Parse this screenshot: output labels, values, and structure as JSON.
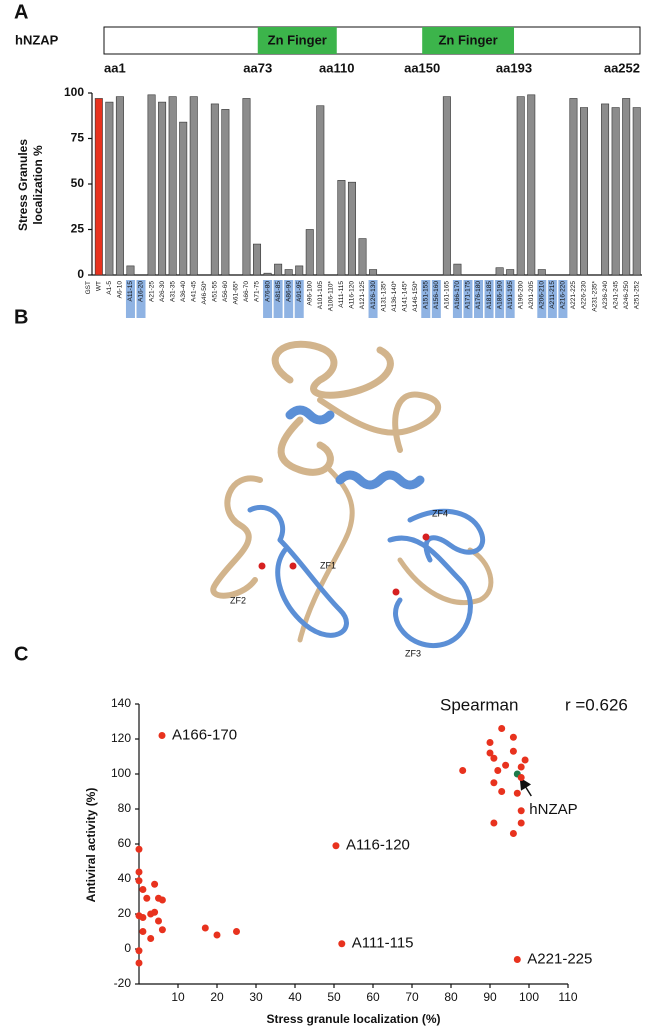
{
  "panels": [
    "A",
    "B",
    "C"
  ],
  "domain_map": {
    "label": "hNZAP",
    "start": 1,
    "end": 252,
    "domains": [
      {
        "label": "Zn Finger",
        "start": 73,
        "end": 110,
        "color": "#3cb44b"
      },
      {
        "label": "Zn Finger",
        "start": 150,
        "end": 193,
        "color": "#3cb44b"
      }
    ],
    "ticks": [
      {
        "value": 1,
        "label": "aa1"
      },
      {
        "value": 73,
        "label": "aa73"
      },
      {
        "value": 110,
        "label": "aa110"
      },
      {
        "value": 150,
        "label": "aa150"
      },
      {
        "value": 193,
        "label": "aa193"
      },
      {
        "value": 252,
        "label": "aa252"
      }
    ]
  },
  "structure": {
    "labels": [
      "ZF1",
      "ZF2",
      "ZF3",
      "ZF4"
    ]
  },
  "chart_data": [
    {
      "type": "bar",
      "ylabel": [
        "Stress Granules",
        "localization %"
      ],
      "categories": [
        "GST",
        "WT",
        "A1-5",
        "A6-10",
        "A11-15",
        "A16-20",
        "A21-25",
        "A26-30",
        "A31-35",
        "A36-40",
        "A41-45",
        "A46-50*",
        "A51-55",
        "A56-60",
        "A61-65*",
        "A66-70",
        "A71-75",
        "A76-80",
        "A81-85",
        "A86-90",
        "A91-95",
        "A96-100",
        "A101-105",
        "A106-110*",
        "A111-115",
        "A116-120",
        "A121-125",
        "A126-130",
        "A131-135*",
        "A136-140*",
        "A141-145*",
        "A146-150*",
        "A151-155",
        "A156-160",
        "A161-165",
        "A166-170",
        "A171-175",
        "A176-180",
        "A181-185",
        "A186-190",
        "A191-195",
        "A196-200",
        "A201-205",
        "A206-210",
        "A211-215",
        "A216-220",
        "A221-225",
        "A226-230",
        "A231-235*",
        "A236-240",
        "A241-245",
        "A246-250",
        "A251-252"
      ],
      "values": [
        0,
        97,
        95,
        98,
        5,
        0,
        99,
        95,
        98,
        84,
        98,
        0,
        94,
        91,
        0,
        97,
        17,
        1,
        6,
        3,
        5,
        25,
        93,
        0,
        52,
        51,
        20,
        3,
        0,
        0,
        0,
        0,
        0,
        0,
        98,
        6,
        0,
        0,
        0,
        4,
        3,
        98,
        99,
        3,
        0,
        0,
        97,
        92,
        0,
        94,
        92,
        97,
        92
      ],
      "color": "#8c8c8c",
      "special_color": "#e8321e",
      "special": [
        false,
        true,
        false,
        false,
        false,
        false,
        false,
        false,
        false,
        false,
        false,
        false,
        false,
        false,
        false,
        false,
        false,
        false,
        false,
        false,
        false,
        false,
        false,
        false,
        false,
        false,
        false,
        false,
        false,
        false,
        false,
        false,
        false,
        false,
        false,
        false,
        false,
        false,
        false,
        false,
        false,
        false,
        false,
        false,
        false,
        false,
        false,
        false,
        false,
        false,
        false,
        false,
        false
      ],
      "highlight_color": "#8fb3e3",
      "highlighted": [
        false,
        false,
        false,
        false,
        true,
        true,
        false,
        false,
        false,
        false,
        false,
        false,
        false,
        false,
        false,
        false,
        false,
        true,
        true,
        true,
        true,
        false,
        false,
        false,
        false,
        false,
        false,
        true,
        false,
        false,
        false,
        false,
        true,
        true,
        false,
        true,
        true,
        true,
        true,
        true,
        true,
        false,
        false,
        true,
        true,
        true,
        false,
        false,
        false,
        false,
        false,
        false,
        false
      ],
      "ylim": [
        0,
        100
      ],
      "yticks": [
        0,
        25,
        50,
        75,
        100
      ]
    },
    {
      "type": "scatter",
      "xlabel": "Stress granule localization (%)",
      "ylabel": "Antiviral activity (%)",
      "annotations": [
        "Spearman",
        "r =0.626"
      ],
      "x": [
        97,
        5.9,
        50.5,
        52,
        97,
        83,
        90,
        93,
        96,
        90,
        91,
        94,
        96,
        91,
        93,
        92,
        97,
        98,
        98,
        99,
        91,
        96,
        98,
        98,
        0,
        0,
        0,
        1,
        2,
        0,
        1,
        4,
        5,
        6,
        3,
        4,
        5,
        6,
        3,
        0,
        0,
        1,
        17,
        20,
        25
      ],
      "values": [
        100,
        122,
        59,
        3,
        -6,
        102,
        118,
        126,
        121,
        112,
        109,
        105,
        113,
        95,
        90,
        102,
        89,
        98,
        104,
        108,
        72,
        66,
        79,
        72,
        57,
        44,
        39,
        34,
        29,
        19,
        18,
        37,
        29,
        28,
        20,
        21,
        16,
        11,
        6,
        -1,
        -8,
        10,
        12,
        8,
        10
      ],
      "point_labels": [
        "hNZAP",
        "A166-170",
        "A116-120",
        "A111-115",
        "A221-225",
        null,
        null,
        null,
        null,
        null,
        null,
        null,
        null,
        null,
        null,
        null,
        null,
        null,
        null,
        null,
        null,
        null,
        null,
        null,
        null,
        null,
        null,
        null,
        null,
        null,
        null,
        null,
        null,
        null,
        null,
        null,
        null,
        null,
        null,
        null,
        null,
        null,
        null,
        null,
        null
      ],
      "color": "#e8321e",
      "highlight_color": "#1e7a4a",
      "xlim": [
        0,
        110
      ],
      "ylim": [
        -20,
        140
      ],
      "xticks": [
        10,
        20,
        30,
        40,
        50,
        60,
        70,
        80,
        90,
        100,
        110
      ],
      "yticks": [
        -20,
        0,
        20,
        40,
        60,
        80,
        100,
        120,
        140
      ]
    }
  ]
}
